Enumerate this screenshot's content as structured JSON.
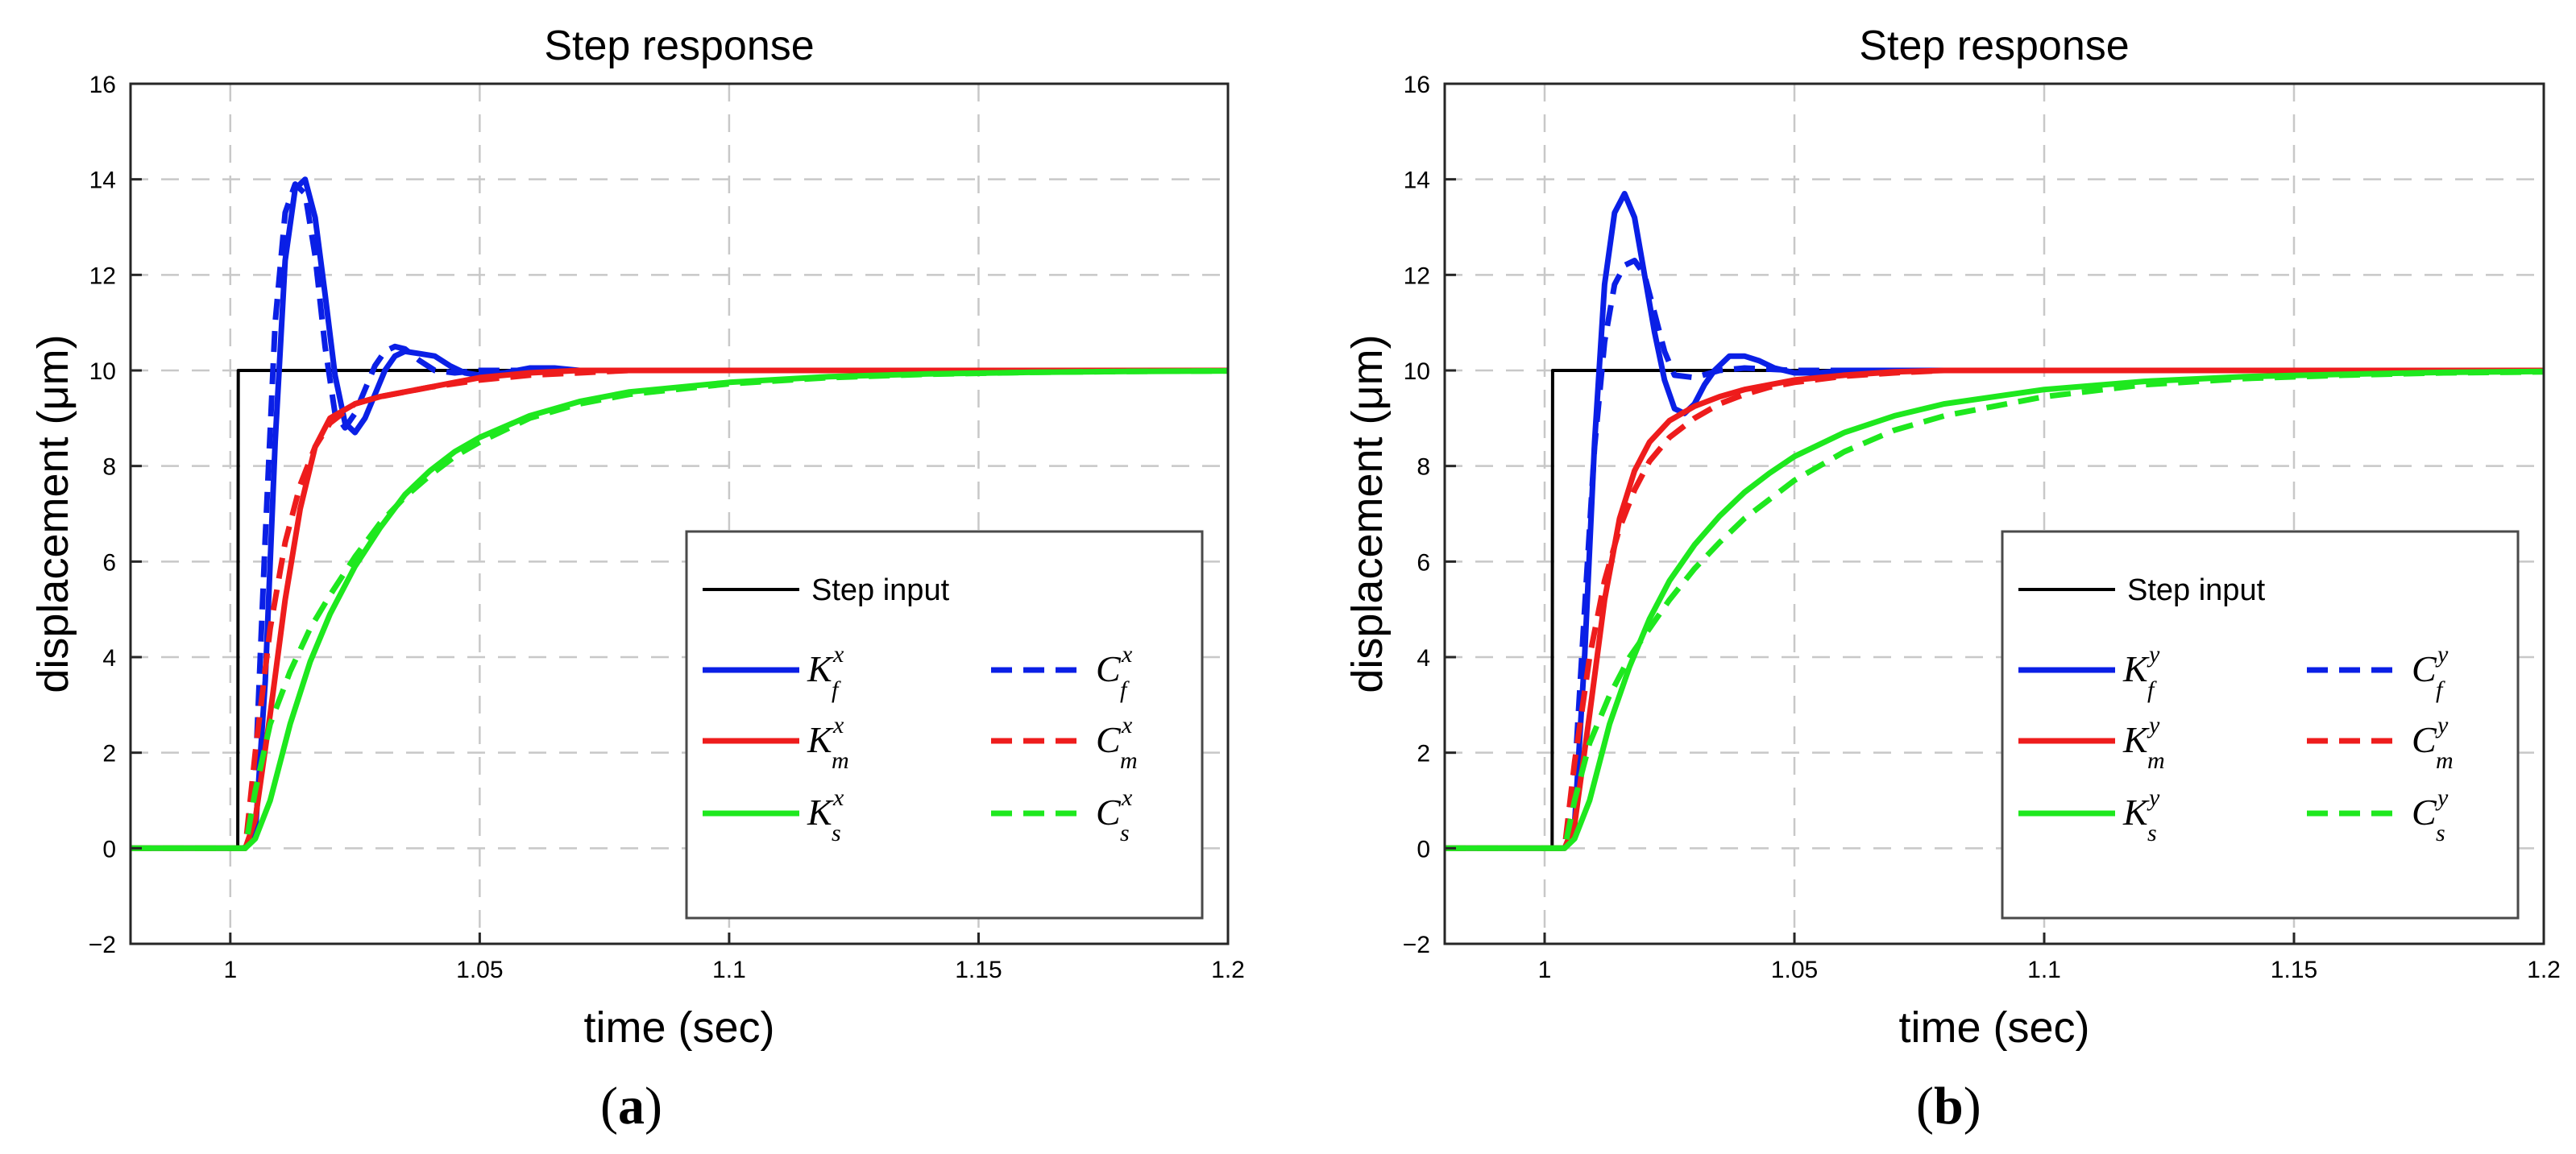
{
  "chart_data": [
    {
      "type": "line",
      "title": "Step response",
      "xlabel": "time (sec)",
      "ylabel": "displacement (μm)",
      "xlim": [
        0.98,
        1.2
      ],
      "ylim": [
        -2,
        16
      ],
      "xticks": [
        1,
        1.05,
        1.1,
        1.15,
        1.2
      ],
      "xtick_labels": [
        "1",
        "1.05",
        "1.1",
        "1.15",
        "1.2"
      ],
      "yticks": [
        -2,
        0,
        2,
        4,
        6,
        8,
        10,
        12,
        14,
        16
      ],
      "ytick_labels": [
        "−2",
        "0",
        "2",
        "4",
        "6",
        "8",
        "10",
        "12",
        "14",
        "16"
      ],
      "grid": true,
      "legend_position": "bottom-right",
      "caption_open": "(",
      "caption_letter": "a",
      "caption_close": ")",
      "legend_step_label": "Step input",
      "series": [
        {
          "name": "Step input",
          "color": "#000000",
          "style": "solid",
          "x": [
            0.98,
            1.0015,
            1.0016,
            1.2
          ],
          "y": [
            0,
            0,
            10,
            10
          ]
        },
        {
          "name": "K_f^x",
          "symbol": "K",
          "sub": "f",
          "sup": "x",
          "color": "#0a1fe6",
          "style": "solid",
          "x": [
            0.98,
            1.003,
            1.005,
            1.007,
            1.009,
            1.011,
            1.013,
            1.015,
            1.017,
            1.019,
            1.021,
            1.023,
            1.025,
            1.027,
            1.029,
            1.031,
            1.033,
            1.035,
            1.038,
            1.041,
            1.044,
            1.047,
            1.05,
            1.055,
            1.06,
            1.065,
            1.07,
            1.08,
            1.1,
            1.2
          ],
          "y": [
            0,
            0,
            0.3,
            3.5,
            8.5,
            12.3,
            13.8,
            14.0,
            13.2,
            11.6,
            9.9,
            8.9,
            8.7,
            9.0,
            9.5,
            10.0,
            10.3,
            10.4,
            10.35,
            10.3,
            10.1,
            9.95,
            9.9,
            9.95,
            10.05,
            10.05,
            10.0,
            10.0,
            10.0,
            10.0
          ]
        },
        {
          "name": "C_f^x",
          "symbol": "C",
          "sub": "f",
          "sup": "x",
          "color": "#0a1fe6",
          "style": "dashed",
          "x": [
            0.98,
            1.003,
            1.005,
            1.007,
            1.009,
            1.011,
            1.013,
            1.015,
            1.017,
            1.019,
            1.021,
            1.023,
            1.025,
            1.027,
            1.029,
            1.031,
            1.033,
            1.035,
            1.038,
            1.041,
            1.045,
            1.05,
            1.06,
            1.07,
            1.2
          ],
          "y": [
            0,
            0,
            1.5,
            6.5,
            11.0,
            13.3,
            13.9,
            13.7,
            12.4,
            10.5,
            9.1,
            8.8,
            9.1,
            9.6,
            10.1,
            10.4,
            10.5,
            10.45,
            10.2,
            10.0,
            9.95,
            10.0,
            10.0,
            10.0,
            10.0
          ]
        },
        {
          "name": "K_m^x",
          "symbol": "K",
          "sub": "m",
          "sup": "x",
          "color": "#ee1c1c",
          "style": "solid",
          "x": [
            0.98,
            1.003,
            1.005,
            1.008,
            1.011,
            1.014,
            1.017,
            1.02,
            1.025,
            1.03,
            1.035,
            1.04,
            1.045,
            1.05,
            1.06,
            1.07,
            1.08,
            1.1,
            1.2
          ],
          "y": [
            0,
            0,
            0.6,
            2.8,
            5.2,
            7.1,
            8.4,
            9.0,
            9.3,
            9.45,
            9.55,
            9.65,
            9.75,
            9.85,
            9.95,
            10.0,
            10.0,
            10.0,
            10.0
          ]
        },
        {
          "name": "C_m^x",
          "symbol": "C",
          "sub": "m",
          "sup": "x",
          "color": "#ee1c1c",
          "style": "dashed",
          "x": [
            0.98,
            1.003,
            1.005,
            1.008,
            1.011,
            1.014,
            1.017,
            1.02,
            1.025,
            1.03,
            1.035,
            1.04,
            1.05,
            1.06,
            1.07,
            1.08,
            1.1,
            1.2
          ],
          "y": [
            0,
            0,
            2.0,
            4.6,
            6.4,
            7.6,
            8.4,
            8.9,
            9.3,
            9.45,
            9.55,
            9.65,
            9.8,
            9.9,
            9.95,
            10.0,
            10.0,
            10.0
          ]
        },
        {
          "name": "K_s^x",
          "symbol": "K",
          "sub": "s",
          "sup": "x",
          "color": "#1ee81e",
          "style": "solid",
          "x": [
            0.98,
            1.003,
            1.005,
            1.008,
            1.012,
            1.016,
            1.02,
            1.025,
            1.03,
            1.035,
            1.04,
            1.045,
            1.05,
            1.06,
            1.07,
            1.08,
            1.1,
            1.12,
            1.14,
            1.16,
            1.18,
            1.2
          ],
          "y": [
            0,
            0,
            0.2,
            1.0,
            2.6,
            3.9,
            4.9,
            5.9,
            6.7,
            7.4,
            7.9,
            8.3,
            8.6,
            9.05,
            9.35,
            9.55,
            9.75,
            9.87,
            9.93,
            9.96,
            9.98,
            9.99
          ]
        },
        {
          "name": "C_s^x",
          "symbol": "C",
          "sub": "s",
          "sup": "x",
          "color": "#1ee81e",
          "style": "dashed",
          "x": [
            0.98,
            1.003,
            1.005,
            1.008,
            1.012,
            1.016,
            1.02,
            1.025,
            1.03,
            1.035,
            1.04,
            1.045,
            1.05,
            1.06,
            1.07,
            1.08,
            1.1,
            1.12,
            1.14,
            1.16,
            1.18,
            1.2
          ],
          "y": [
            0,
            0,
            1.2,
            2.6,
            3.7,
            4.6,
            5.3,
            6.1,
            6.8,
            7.35,
            7.8,
            8.2,
            8.5,
            9.0,
            9.3,
            9.5,
            9.72,
            9.85,
            9.92,
            9.96,
            9.98,
            9.99
          ]
        }
      ]
    },
    {
      "type": "line",
      "title": "Step response",
      "xlabel": "time (sec)",
      "ylabel": "displacement (μm)",
      "xlim": [
        0.98,
        1.2
      ],
      "ylim": [
        -2,
        16
      ],
      "xticks": [
        1,
        1.05,
        1.1,
        1.15,
        1.2
      ],
      "xtick_labels": [
        "1",
        "1.05",
        "1.1",
        "1.15",
        "1.2"
      ],
      "yticks": [
        -2,
        0,
        2,
        4,
        6,
        8,
        10,
        12,
        14,
        16
      ],
      "ytick_labels": [
        "−2",
        "0",
        "2",
        "4",
        "6",
        "8",
        "10",
        "12",
        "14",
        "16"
      ],
      "grid": true,
      "legend_position": "bottom-right",
      "caption_open": "(",
      "caption_letter": "b",
      "caption_close": ")",
      "legend_step_label": "Step input",
      "series": [
        {
          "name": "Step input",
          "color": "#000000",
          "style": "solid",
          "x": [
            0.98,
            1.0015,
            1.0016,
            1.2
          ],
          "y": [
            0,
            0,
            10,
            10
          ]
        },
        {
          "name": "K_f^y",
          "symbol": "K",
          "sub": "f",
          "sup": "y",
          "color": "#0a1fe6",
          "style": "solid",
          "x": [
            0.98,
            1.004,
            1.006,
            1.008,
            1.01,
            1.012,
            1.014,
            1.016,
            1.018,
            1.02,
            1.022,
            1.024,
            1.026,
            1.028,
            1.03,
            1.032,
            1.034,
            1.037,
            1.04,
            1.043,
            1.046,
            1.05,
            1.055,
            1.06,
            1.07,
            1.2
          ],
          "y": [
            0,
            0,
            0.5,
            4.0,
            8.5,
            11.8,
            13.3,
            13.7,
            13.2,
            12.0,
            10.8,
            9.8,
            9.2,
            9.1,
            9.3,
            9.7,
            10.0,
            10.3,
            10.3,
            10.2,
            10.05,
            9.95,
            9.95,
            10.0,
            10.0,
            10.0
          ]
        },
        {
          "name": "C_f^y",
          "symbol": "C",
          "sub": "f",
          "sup": "y",
          "color": "#0a1fe6",
          "style": "dashed",
          "x": [
            0.98,
            1.004,
            1.006,
            1.008,
            1.01,
            1.012,
            1.014,
            1.016,
            1.018,
            1.02,
            1.022,
            1.024,
            1.026,
            1.03,
            1.035,
            1.04,
            1.05,
            1.06,
            1.2
          ],
          "y": [
            0,
            0,
            1.5,
            5.0,
            8.4,
            10.6,
            11.8,
            12.2,
            12.3,
            12.0,
            11.2,
            10.4,
            9.9,
            9.85,
            10.0,
            10.05,
            10.0,
            10.0,
            10.0
          ]
        },
        {
          "name": "K_m^y",
          "symbol": "K",
          "sub": "m",
          "sup": "y",
          "color": "#ee1c1c",
          "style": "solid",
          "x": [
            0.98,
            1.004,
            1.006,
            1.009,
            1.012,
            1.015,
            1.018,
            1.021,
            1.025,
            1.03,
            1.035,
            1.04,
            1.045,
            1.05,
            1.06,
            1.07,
            1.08,
            1.1,
            1.2
          ],
          "y": [
            0,
            0,
            0.5,
            2.8,
            5.2,
            6.9,
            7.9,
            8.5,
            8.95,
            9.25,
            9.45,
            9.6,
            9.7,
            9.8,
            9.9,
            9.97,
            10.0,
            10.0,
            10.0
          ]
        },
        {
          "name": "C_m^y",
          "symbol": "C",
          "sub": "m",
          "sup": "y",
          "color": "#ee1c1c",
          "style": "dashed",
          "x": [
            0.98,
            1.004,
            1.006,
            1.009,
            1.012,
            1.015,
            1.018,
            1.021,
            1.025,
            1.03,
            1.035,
            1.04,
            1.045,
            1.05,
            1.06,
            1.07,
            1.08,
            1.1,
            1.2
          ],
          "y": [
            0,
            0,
            1.8,
            4.0,
            5.6,
            6.7,
            7.5,
            8.1,
            8.6,
            9.0,
            9.3,
            9.5,
            9.65,
            9.75,
            9.88,
            9.95,
            10.0,
            10.0,
            10.0
          ]
        },
        {
          "name": "K_s^y",
          "symbol": "K",
          "sub": "s",
          "sup": "y",
          "color": "#1ee81e",
          "style": "solid",
          "x": [
            0.98,
            1.004,
            1.006,
            1.009,
            1.013,
            1.017,
            1.021,
            1.025,
            1.03,
            1.035,
            1.04,
            1.045,
            1.05,
            1.06,
            1.07,
            1.08,
            1.1,
            1.12,
            1.14,
            1.16,
            1.18,
            1.2
          ],
          "y": [
            0,
            0,
            0.2,
            1.0,
            2.6,
            3.8,
            4.8,
            5.6,
            6.35,
            6.95,
            7.45,
            7.85,
            8.2,
            8.7,
            9.05,
            9.3,
            9.6,
            9.77,
            9.87,
            9.92,
            9.96,
            9.98
          ]
        },
        {
          "name": "C_s^y",
          "symbol": "C",
          "sub": "s",
          "sup": "y",
          "color": "#1ee81e",
          "style": "dashed",
          "x": [
            0.98,
            1.004,
            1.006,
            1.009,
            1.013,
            1.017,
            1.021,
            1.025,
            1.03,
            1.035,
            1.04,
            1.045,
            1.05,
            1.06,
            1.07,
            1.08,
            1.1,
            1.12,
            1.14,
            1.16,
            1.18,
            1.2
          ],
          "y": [
            0,
            0,
            1.0,
            2.2,
            3.2,
            4.0,
            4.6,
            5.2,
            5.85,
            6.4,
            6.9,
            7.3,
            7.7,
            8.3,
            8.75,
            9.05,
            9.45,
            9.7,
            9.83,
            9.9,
            9.95,
            9.97
          ]
        }
      ]
    }
  ]
}
